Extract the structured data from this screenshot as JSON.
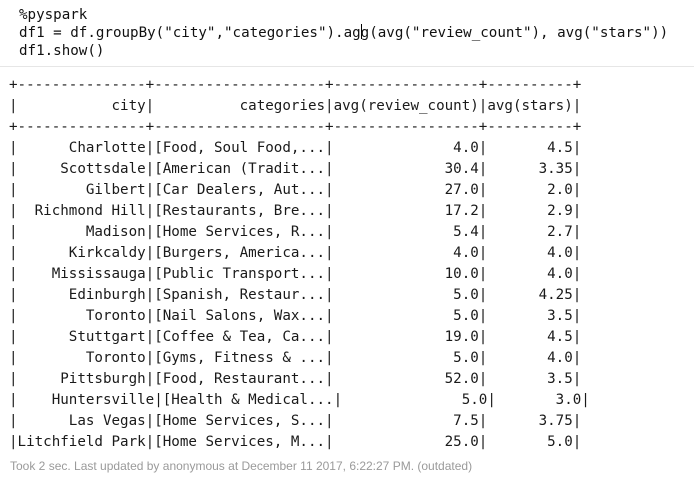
{
  "code": {
    "magic": "%pyspark",
    "line2_before_cursor": "df1 = df.groupBy(\"city\",\"categories\").ag",
    "line2_after_cursor": "g(avg(\"review_count\"), avg(\"stars\"))",
    "line3": "df1.show()"
  },
  "output": {
    "border": "+---------------+--------------------+-----------------+----------+",
    "header": "|           city|          categories|avg(review_count)|avg(stars)|",
    "rows": [
      "|      Charlotte|[Food, Soul Food,...|              4.0|       4.5|",
      "|     Scottsdale|[American (Tradit...|             30.4|      3.35|",
      "|        Gilbert|[Car Dealers, Aut...|             27.0|       2.0|",
      "|  Richmond Hill|[Restaurants, Bre...|             17.2|       2.9|",
      "|        Madison|[Home Services, R...|              5.4|       2.7|",
      "|      Kirkcaldy|[Burgers, America...|              4.0|       4.0|",
      "|    Mississauga|[Public Transport...|             10.0|       4.0|",
      "|      Edinburgh|[Spanish, Restaur...|              5.0|      4.25|",
      "|        Toronto|[Nail Salons, Wax...|              5.0|       3.5|",
      "|      Stuttgart|[Coffee & Tea, Ca...|             19.0|       4.5|",
      "|        Toronto|[Gyms, Fitness & ...|              5.0|       4.0|",
      "|     Pittsburgh|[Food, Restaurant...|             52.0|       3.5|",
      "|    Huntersville|[Health & Medical...|              5.0|       3.0|",
      "|      Las Vegas|[Home Services, S...|              7.5|      3.75|",
      "|Litchfield Park|[Home Services, M...|             25.0|       5.0|"
    ]
  },
  "footer": "Took 2 sec. Last updated by anonymous at December 11 2017, 6:22:27 PM. (outdated)"
}
